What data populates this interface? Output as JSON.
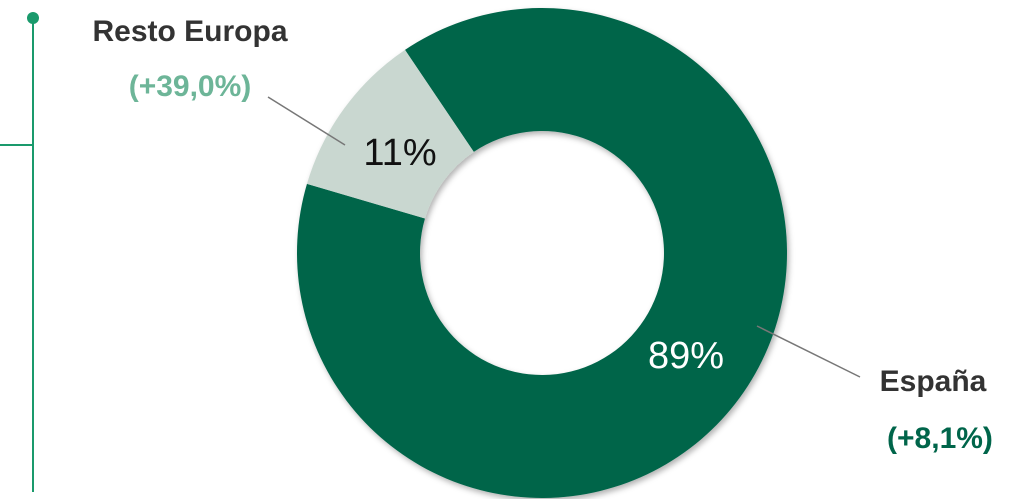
{
  "chart_data": {
    "type": "pie",
    "donut": true,
    "categories": [
      "España",
      "Resto Europa"
    ],
    "values": [
      89,
      11
    ],
    "value_labels": [
      "89%",
      "11%"
    ],
    "annotations": [
      "(+8,1%)",
      "(+39,0%)"
    ],
    "colors": [
      "#00654a",
      "#c9d7d0"
    ],
    "annotation_colors": [
      "#00654a",
      "#6db598"
    ],
    "value_label_colors": [
      "#ffffff",
      "#111111"
    ]
  }
}
